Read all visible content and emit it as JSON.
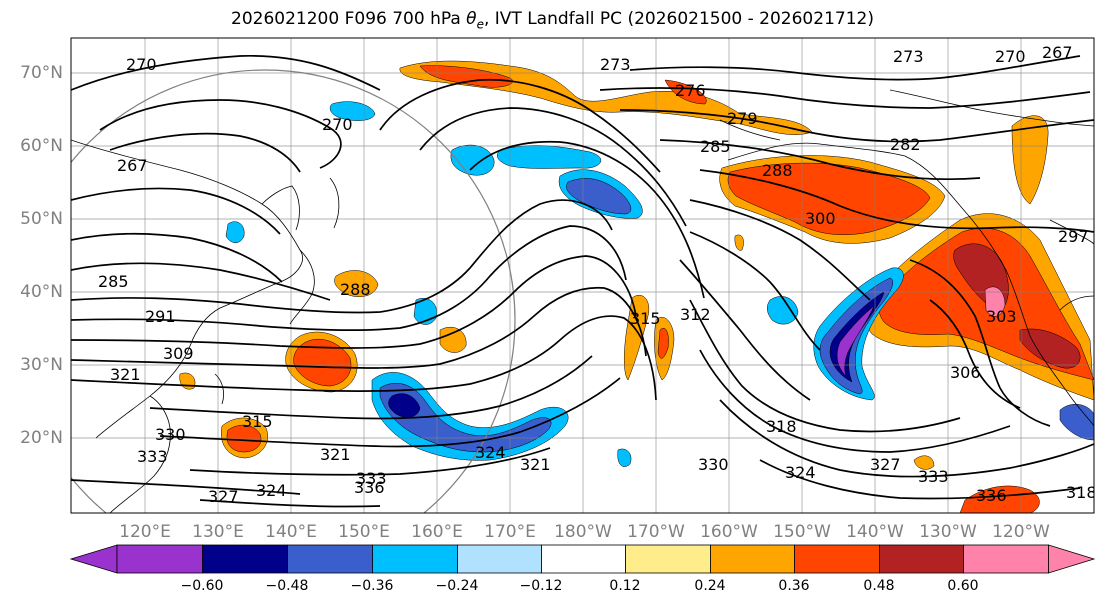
{
  "title": "2026021200 F096 700 hPa θe, IVT Landfall PC (2026021500 - 2026021712)",
  "title_parts": {
    "pre": "2026021200 F096 700 hPa ",
    "theta": "θ",
    "sub": "e",
    "post": ", IVT Landfall PC (2026021500 - 2026021712)"
  },
  "lat_labels": [
    "70°N",
    "60°N",
    "50°N",
    "40°N",
    "30°N",
    "20°N"
  ],
  "lon_labels": [
    "120°E",
    "130°E",
    "140°E",
    "150°E",
    "160°E",
    "170°E",
    "180°W",
    "170°W",
    "160°W",
    "150°W",
    "140°W",
    "130°W",
    "120°W"
  ],
  "colorbar": {
    "ticks": [
      "−0.60",
      "−0.48",
      "−0.36",
      "−0.24",
      "−0.12",
      "0.12",
      "0.24",
      "0.36",
      "0.48",
      "0.60"
    ],
    "colors": [
      "#9a32cd",
      "#00008b",
      "#3a5fcd",
      "#00bfff",
      "#b0e2ff",
      "#ffffff",
      "#ffec8b",
      "#ffa500",
      "#ff4500",
      "#b22222",
      "#ff82ab"
    ]
  },
  "contour_labels": [
    {
      "text": "270"
    },
    {
      "text": "273"
    },
    {
      "text": "273"
    },
    {
      "text": "270"
    },
    {
      "text": "267"
    },
    {
      "text": "276"
    },
    {
      "text": "279"
    },
    {
      "text": "270"
    },
    {
      "text": "267"
    },
    {
      "text": "285"
    },
    {
      "text": "288"
    },
    {
      "text": "282"
    },
    {
      "text": "300"
    },
    {
      "text": "285"
    },
    {
      "text": "288"
    },
    {
      "text": "297"
    },
    {
      "text": "291"
    },
    {
      "text": "309"
    },
    {
      "text": "315"
    },
    {
      "text": "312"
    },
    {
      "text": "303"
    },
    {
      "text": "321"
    },
    {
      "text": "306"
    },
    {
      "text": "315"
    },
    {
      "text": "318"
    },
    {
      "text": "330"
    },
    {
      "text": "333"
    },
    {
      "text": "321"
    },
    {
      "text": "324"
    },
    {
      "text": "321"
    },
    {
      "text": "330"
    },
    {
      "text": "324"
    },
    {
      "text": "327"
    },
    {
      "text": "333"
    },
    {
      "text": "336"
    },
    {
      "text": "327"
    },
    {
      "text": "324"
    },
    {
      "text": "333"
    },
    {
      "text": "336"
    },
    {
      "text": "318"
    }
  ]
}
